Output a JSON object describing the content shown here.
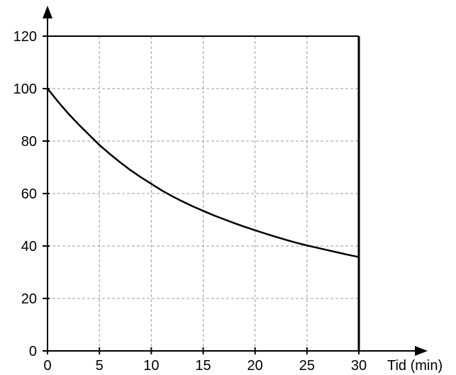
{
  "chart_data": {
    "type": "line",
    "title": "",
    "xlabel": "Tid (min)",
    "ylabel": "",
    "xlim": [
      0,
      30
    ],
    "ylim": [
      0,
      120
    ],
    "xticks": [
      0,
      5,
      10,
      15,
      20,
      25,
      30
    ],
    "yticks": [
      0,
      20,
      40,
      60,
      80,
      100,
      120
    ],
    "xtick_labels": [
      "0",
      "5",
      "10",
      "15",
      "20",
      "25",
      "30"
    ],
    "ytick_labels": [
      "0",
      "20",
      "40",
      "60",
      "80",
      "100",
      "120"
    ],
    "grid": true,
    "legend": "none",
    "series": [
      {
        "x": [
          0,
          1,
          2,
          3,
          4,
          5,
          6,
          7,
          8,
          9,
          10,
          11,
          12,
          13,
          14,
          15,
          16,
          17,
          18,
          19,
          20,
          21,
          22,
          23,
          24,
          25,
          26,
          27,
          28,
          29,
          30
        ],
        "values": [
          100,
          95.1,
          90.5,
          86.3,
          82.4,
          78.5,
          75.1,
          71.9,
          68.9,
          66.2,
          63.7,
          61.2,
          59.0,
          57.0,
          55.1,
          53.4,
          51.7,
          50.2,
          48.7,
          47.3,
          46.0,
          44.7,
          43.5,
          42.3,
          41.2,
          40.2,
          39.3,
          38.4,
          37.5,
          36.6,
          35.8
        ],
        "color": "#000000"
      }
    ]
  }
}
